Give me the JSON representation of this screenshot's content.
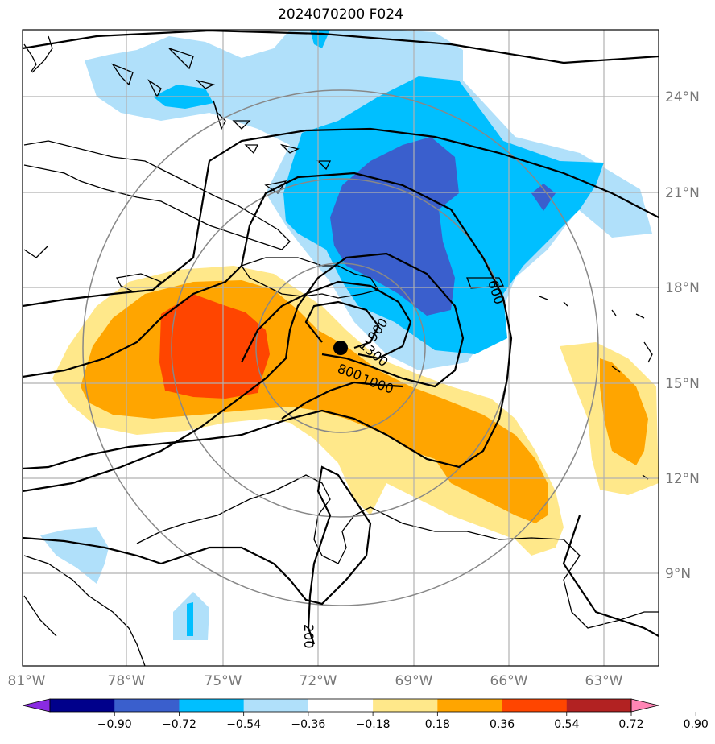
{
  "title": "2024070200 F024",
  "lon_labels": [
    "81°W",
    "78°W",
    "75°W",
    "72°W",
    "69°W",
    "66°W",
    "63°W"
  ],
  "lat_labels": [
    "24°N",
    "21°N",
    "18°N",
    "15°N",
    "12°N",
    "9°N"
  ],
  "colorbar": {
    "ticks": [
      "−0.90",
      "−0.72",
      "−0.54",
      "−0.36",
      "−0.18",
      "0.18",
      "0.36",
      "0.54",
      "0.72",
      "0.90"
    ],
    "colors": [
      "#8a2be2",
      "#00008b",
      "#3a5fcd",
      "#00bfff",
      "#b0e0fa",
      "#ffffff",
      "#ffe88a",
      "#ffa500",
      "#ff4500",
      "#b22222",
      "#ff85b5"
    ]
  },
  "contour_labels": [
    "600",
    "900",
    "1300",
    "800",
    "1000",
    "600",
    "200"
  ],
  "colors": {
    "light_blue": "#b0e0fa",
    "sky_blue": "#00bfff",
    "royal_blue": "#3a5fcd",
    "light_yellow": "#ffe88a",
    "orange": "#ffa500",
    "red_orange": "#ff4500"
  }
}
